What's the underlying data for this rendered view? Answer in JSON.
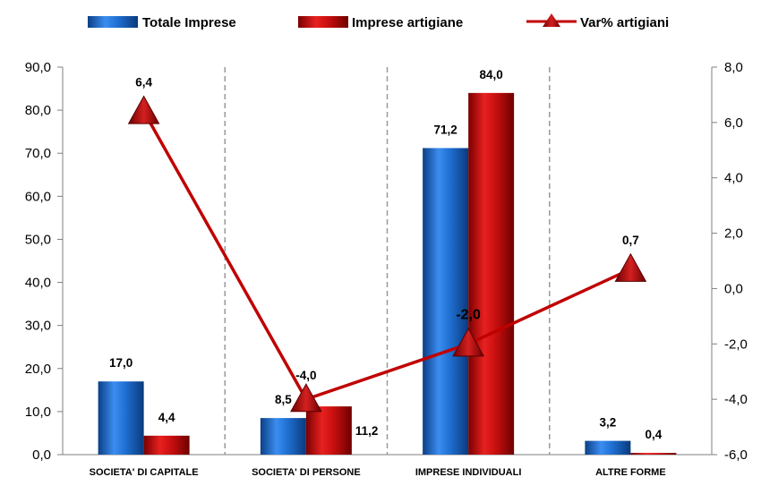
{
  "colors": {
    "series_totale": "#1f6fd1",
    "series_artigiane": "#d01010",
    "series_var": "#c00000",
    "grid_dash": "#999999"
  },
  "chart_data": {
    "type": "bar",
    "categories": [
      "SOCIETA' DI CAPITALE",
      "SOCIETA' DI PERSONE",
      "IMPRESE INDIVIDUALI",
      "ALTRE FORME"
    ],
    "series": [
      {
        "name": "Totale Imprese",
        "kind": "bar",
        "axis": "left",
        "values": [
          17.0,
          8.5,
          71.2,
          3.2
        ],
        "labels": [
          "17,0",
          "8,5",
          "71,2",
          "3,2"
        ]
      },
      {
        "name": "Imprese artigiane",
        "kind": "bar",
        "axis": "left",
        "values": [
          4.4,
          11.2,
          84.0,
          0.4
        ],
        "labels": [
          "4,4",
          "11,2",
          "84,0",
          "0,4"
        ]
      },
      {
        "name": "Var% artigiani",
        "kind": "line",
        "marker": "triangle",
        "axis": "right",
        "values": [
          6.4,
          -4.0,
          -2.0,
          0.7
        ],
        "labels": [
          "6,4",
          "-4,0",
          "-2,0",
          "0,7"
        ]
      }
    ],
    "y_left": {
      "min": 0,
      "max": 90,
      "ticks": [
        "0,0",
        "10,0",
        "20,0",
        "30,0",
        "40,0",
        "50,0",
        "60,0",
        "70,0",
        "80,0",
        "90,0"
      ]
    },
    "y_right": {
      "min": -6,
      "max": 8,
      "ticks": [
        "-6,0",
        "-4,0",
        "-2,0",
        "0,0",
        "2,0",
        "4,0",
        "6,0",
        "8,0"
      ]
    },
    "legend_position": "top",
    "grid": "vertical dashed category separators"
  }
}
